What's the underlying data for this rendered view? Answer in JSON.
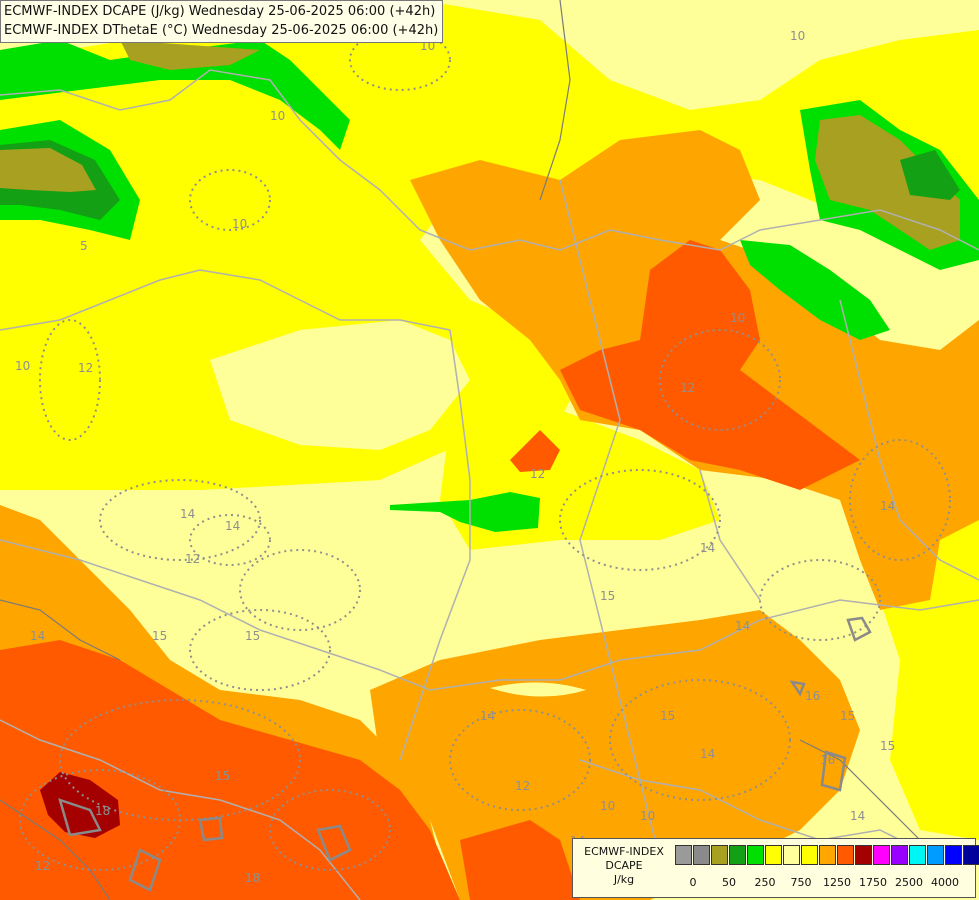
{
  "titles": [
    "ECMWF-INDEX DCAPE (J/kg) Wednesday 25-06-2025 06:00 (+42h)",
    "ECMWF-INDEX DThetaE (°C) Wednesday 25-06-2025 06:00 (+42h)"
  ],
  "legend": {
    "line1": "ECMWF-INDEX",
    "line2": "DCAPE",
    "line3": "J/kg",
    "colors": [
      "#9a9a9a",
      "#8a8a8a",
      "#a8a020",
      "#14a014",
      "#00e000",
      "#ffff00",
      "#ffff9c",
      "#ffff00",
      "#ffa600",
      "#ff5a00",
      "#a50000",
      "#ff00ff",
      "#9a00ff",
      "#00f5f5",
      "#009cff",
      "#0000ff",
      "#00009a"
    ],
    "ticks": [
      "0",
      "50",
      "250",
      "750",
      "1250",
      "1750",
      "2500",
      "4000"
    ]
  },
  "contour_labels": [
    "10",
    "10",
    "10",
    "10",
    "5",
    "10",
    "12",
    "10",
    "12",
    "12",
    "14",
    "14",
    "14",
    "12",
    "14",
    "15",
    "14",
    "15",
    "14",
    "15",
    "15",
    "14",
    "15",
    "16",
    "15",
    "16",
    "15",
    "10",
    "14",
    "18",
    "18",
    "12",
    "14",
    "14",
    "10",
    "12"
  ],
  "fill_colors": {
    "pale_yellow": "#ffff99",
    "yellow": "#ffff00",
    "light_orange": "#ffa500",
    "red_orange": "#ff5a00",
    "dark_red": "#a50000",
    "green": "#00e000",
    "dark_green": "#14a014",
    "olive": "#a8a020",
    "contour_grey": "#8f8f8f",
    "border_grey": "#9a9a9a"
  }
}
